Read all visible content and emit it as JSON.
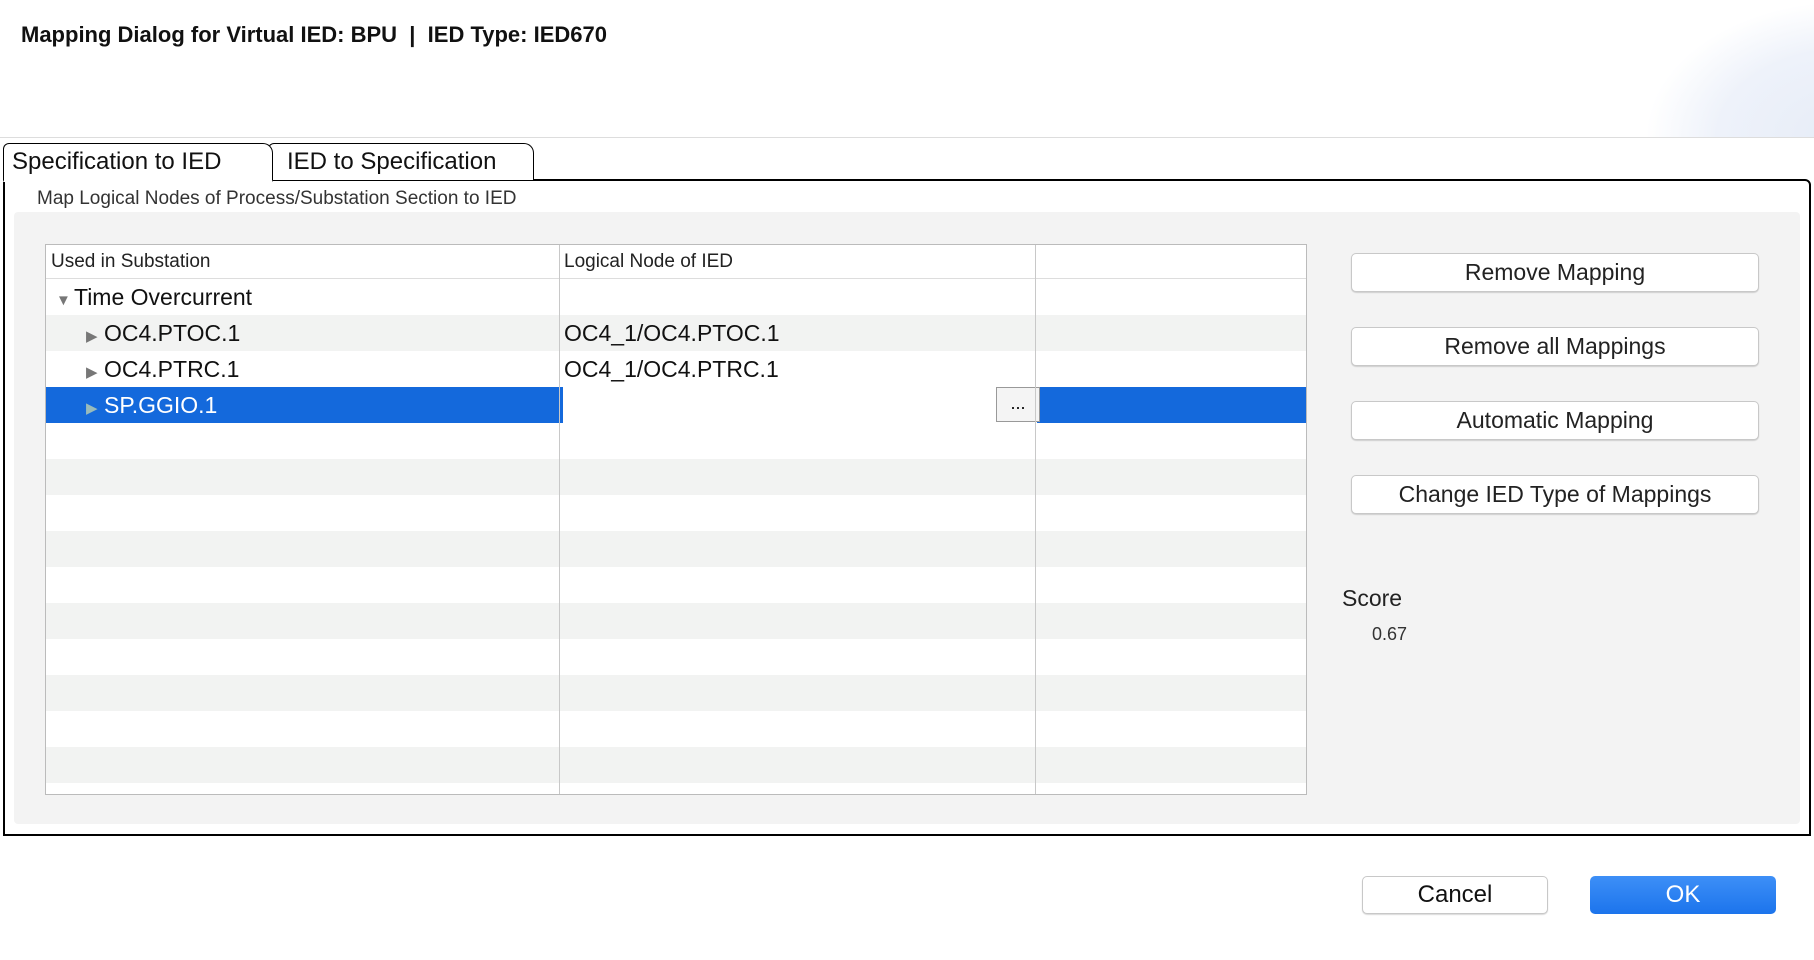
{
  "dialog": {
    "title": "Mapping Dialog for Virtual IED: BPU  |  IED Type: IED670"
  },
  "tabs": [
    {
      "label": "Specification to IED",
      "active": true
    },
    {
      "label": "IED to Specification",
      "active": false
    }
  ],
  "section": {
    "subtitle": "Map Logical Nodes of Process/Substation Section to IED"
  },
  "table": {
    "columns": [
      "Used in Substation",
      "Logical Node of IED",
      ""
    ],
    "rows": [
      {
        "name": "Time Overcurrent",
        "mapped": "",
        "expanded": true,
        "level": 0
      },
      {
        "name": "OC4.PTOC.1",
        "mapped": "OC4_1/OC4.PTOC.1",
        "expanded": false,
        "level": 1
      },
      {
        "name": "OC4.PTRC.1",
        "mapped": "OC4_1/OC4.PTRC.1",
        "expanded": false,
        "level": 1
      },
      {
        "name": "SP.GGIO.1",
        "mapped": "",
        "expanded": false,
        "level": 1,
        "selected": true,
        "browse_label": "..."
      }
    ]
  },
  "actions": {
    "remove_mapping": "Remove Mapping",
    "remove_all": "Remove all Mappings",
    "automatic": "Automatic Mapping",
    "change_type": "Change IED Type of Mappings"
  },
  "score": {
    "label": "Score",
    "value": "0.67"
  },
  "footer": {
    "cancel": "Cancel",
    "ok": "OK"
  },
  "colors": {
    "selection": "#1469dc",
    "ok_button": "#2479ee"
  }
}
